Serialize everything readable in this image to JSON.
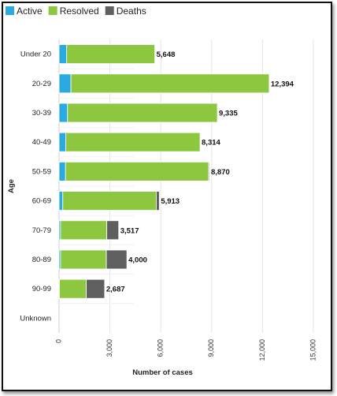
{
  "colors": {
    "active": "#29abe2",
    "resolved": "#8dc63f",
    "deaths": "#5f5f5f",
    "grid": "#e4e4e4",
    "axis": "#cccccc"
  },
  "chart_data": {
    "type": "bar",
    "orientation": "horizontal",
    "stacked": true,
    "xlabel": "Number of cases",
    "ylabel": "Age",
    "xlim": [
      0,
      15000
    ],
    "xticks": [
      "0",
      "3,000",
      "6,000",
      "9,000",
      "12,000",
      "15,000"
    ],
    "xtick_values": [
      0,
      3000,
      6000,
      9000,
      12000,
      15000
    ],
    "grid": "vertical",
    "legend_position": "top-left",
    "categories": [
      "Under 20",
      "20-29",
      "30-39",
      "40-49",
      "50-59",
      "60-69",
      "70-79",
      "80-89",
      "90-99",
      "Unknown"
    ],
    "series": [
      {
        "name": "Active",
        "key": "active",
        "values": [
          450,
          700,
          500,
          400,
          380,
          220,
          90,
          90,
          20,
          0
        ]
      },
      {
        "name": "Resolved",
        "key": "resolved",
        "values": [
          5198,
          11694,
          8835,
          7914,
          8440,
          5513,
          2727,
          2700,
          1587,
          0
        ]
      },
      {
        "name": "Deaths",
        "key": "deaths",
        "values": [
          0,
          0,
          0,
          0,
          50,
          180,
          700,
          1210,
          1080,
          0
        ]
      }
    ],
    "totals": [
      "5,648",
      "12,394",
      "9,335",
      "8,314",
      "8,870",
      "5,913",
      "3,517",
      "4,000",
      "2,687",
      ""
    ]
  }
}
